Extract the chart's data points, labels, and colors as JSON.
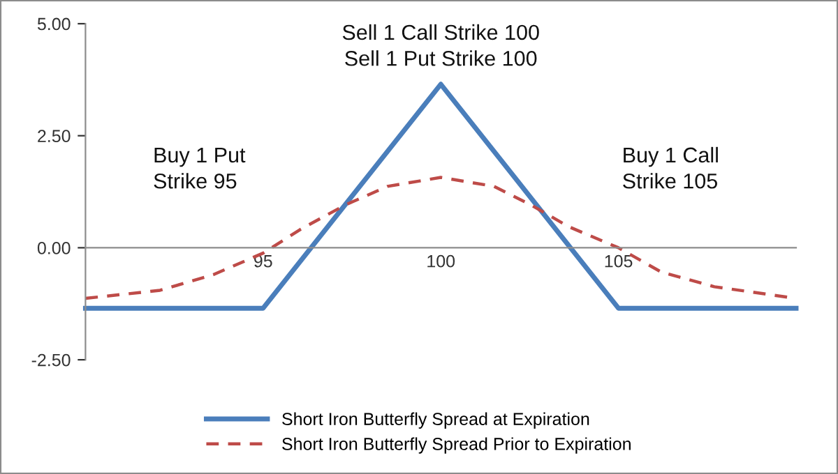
{
  "chart_data": {
    "type": "line",
    "xlim": [
      90,
      110
    ],
    "xticks": [
      95,
      100,
      105
    ],
    "ylim": [
      -2.5,
      5
    ],
    "yticks": [
      {
        "value": -2.5,
        "label": "-2.50"
      },
      {
        "value": 0,
        "label": "0.00"
      },
      {
        "value": 2.5,
        "label": "2.50"
      },
      {
        "value": 5,
        "label": "5.00"
      }
    ],
    "grid": false,
    "legend": "bottom",
    "marker": "none",
    "annotations": [
      "Sell 1 Call Strike 100\nSell 1 Put Strike 100",
      "Buy 1 Put\nStrike 95",
      "Buy 1 Call\nStrike 105"
    ],
    "series": [
      {
        "name": "Short Iron Butterfly Spread at Expiration",
        "color": "#4a7ebb",
        "line_style": "solid",
        "x": [
          90,
          95,
          100,
          105,
          110
        ],
        "values": [
          -1.35,
          -1.35,
          3.65,
          -1.35,
          -1.35
        ]
      },
      {
        "name": "Short Iron Butterfly Spread Prior to Expiration",
        "color": "#be4b48",
        "line_style": "dashed",
        "x": [
          90,
          92.1,
          93.6,
          95,
          96.05,
          97.3,
          98.5,
          100,
          101.5,
          102.55,
          103.6,
          105,
          106.2,
          107.7,
          110
        ],
        "values": [
          -1.13,
          -0.95,
          -0.6,
          -0.12,
          0.41,
          0.95,
          1.37,
          1.57,
          1.37,
          0.95,
          0.47,
          0,
          -0.54,
          -0.87,
          -1.13
        ]
      }
    ]
  }
}
